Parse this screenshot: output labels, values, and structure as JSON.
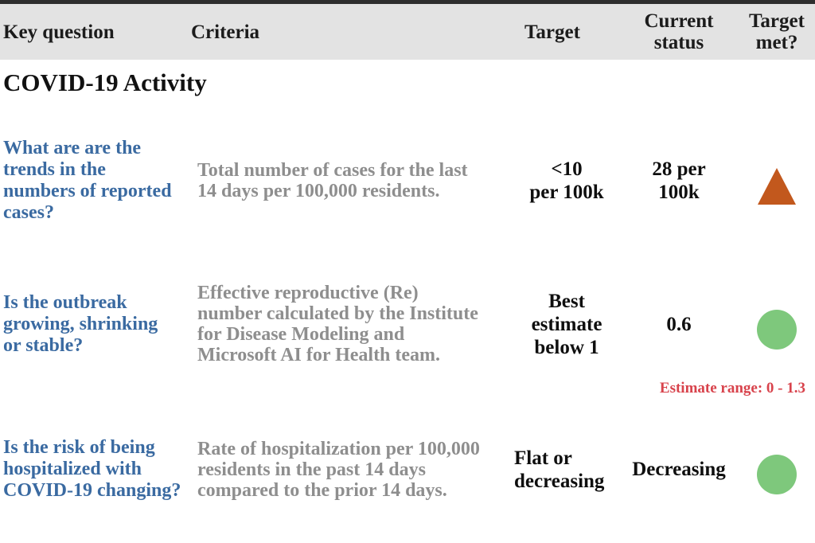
{
  "colors": {
    "header_bg": "#e3e3e3",
    "question_blue": "#3a6aa1",
    "criteria_gray": "#8e8e8e",
    "triangle_orange": "#c2581d",
    "circle_green": "#7ec87c",
    "note_red": "#d8434c"
  },
  "header": {
    "key_question": "Key question",
    "criteria": "Criteria",
    "target": "Target",
    "current_status": "Current\nstatus",
    "target_met": "Target\nmet?"
  },
  "section": {
    "title": "COVID-19 Activity"
  },
  "rows": [
    {
      "question": "What are are the\ntrends in the\nnumbers of reported\ncases?",
      "criteria": "Total number of cases for the last\n14 days per 100,000 residents.",
      "target": "<10\nper 100k",
      "current_status": "28 per\n100k",
      "indicator": "orange-triangle-icon"
    },
    {
      "question": "Is the outbreak\ngrowing, shrinking\nor stable?",
      "criteria": "Effective reproductive (Re)\nnumber calculated by the Institute\nfor Disease Modeling and\nMicrosoft AI for Health team.",
      "target": "Best\nestimate\nbelow 1",
      "current_status": "0.6",
      "indicator": "green-circle-icon",
      "note": "Estimate range: 0 - 1.3"
    },
    {
      "question": "Is the risk of being\nhospitalized with\nCOVID-19 changing?",
      "criteria": "Rate of hospitalization per 100,000\nresidents in the past 14 days\ncompared to the prior 14 days.",
      "target": "Flat or\ndecreasing",
      "current_status": "Decreasing",
      "indicator": "green-circle-icon"
    }
  ]
}
